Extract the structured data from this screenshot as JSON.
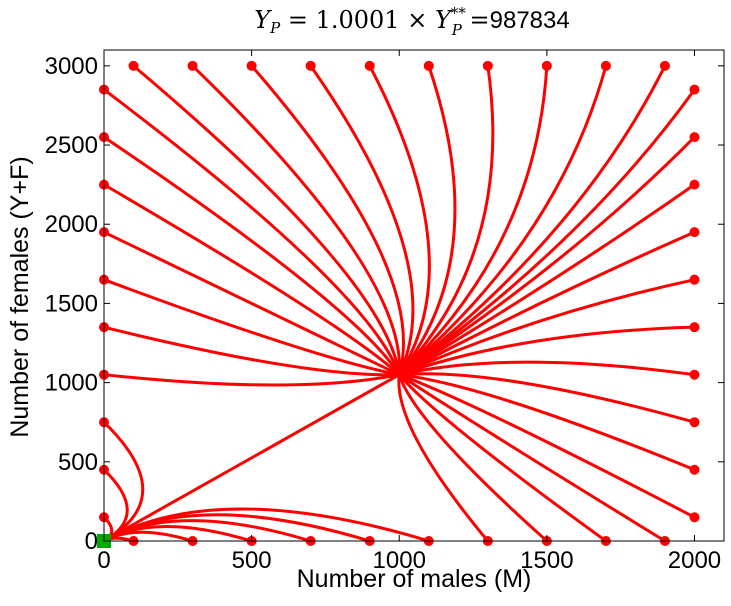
{
  "chart_data": {
    "type": "line",
    "title_parts": {
      "y": "Y",
      "sub_p": "P",
      "eq1": " = 1.0001 × ",
      "sup": "**",
      "eq2": " =",
      "value": "987834"
    },
    "xlabel": "Number of males (M)",
    "ylabel": "Number of females (Y+F)",
    "xlim": [
      0,
      2100
    ],
    "ylim": [
      0,
      3100
    ],
    "xticks": [
      0,
      500,
      1000,
      1500,
      2000
    ],
    "yticks": [
      0,
      500,
      1000,
      1500,
      2000,
      2500,
      3000
    ],
    "grid": false,
    "line_color": "#ff0000",
    "marker_color": "#ff0000",
    "equilibrium_color": "#00aa00",
    "equilibrium_point": [
      0,
      0
    ],
    "attractor_end": [
      1000,
      1050
    ],
    "series": [
      {
        "start": [
          100,
          3000
        ],
        "end": [
          1000,
          1050
        ]
      },
      {
        "start": [
          300,
          3000
        ],
        "end": [
          1000,
          1050
        ]
      },
      {
        "start": [
          500,
          3000
        ],
        "end": [
          1000,
          1050
        ]
      },
      {
        "start": [
          700,
          3000
        ],
        "end": [
          1000,
          1050
        ]
      },
      {
        "start": [
          900,
          3000
        ],
        "end": [
          1000,
          1050
        ]
      },
      {
        "start": [
          1100,
          3000
        ],
        "end": [
          1000,
          1050
        ]
      },
      {
        "start": [
          1300,
          3000
        ],
        "end": [
          1000,
          1050
        ]
      },
      {
        "start": [
          1500,
          3000
        ],
        "end": [
          1000,
          1050
        ]
      },
      {
        "start": [
          1700,
          3000
        ],
        "end": [
          1000,
          1050
        ]
      },
      {
        "start": [
          1900,
          3000
        ],
        "end": [
          1000,
          1050
        ]
      },
      {
        "start": [
          2000,
          2850
        ],
        "end": [
          1000,
          1050
        ]
      },
      {
        "start": [
          2000,
          2550
        ],
        "end": [
          1000,
          1050
        ]
      },
      {
        "start": [
          2000,
          2250
        ],
        "end": [
          1000,
          1050
        ]
      },
      {
        "start": [
          2000,
          1950
        ],
        "end": [
          1000,
          1050
        ]
      },
      {
        "start": [
          2000,
          1650
        ],
        "end": [
          1000,
          1050
        ]
      },
      {
        "start": [
          2000,
          1350
        ],
        "end": [
          1000,
          1050
        ]
      },
      {
        "start": [
          2000,
          1050
        ],
        "end": [
          1000,
          1050
        ]
      },
      {
        "start": [
          2000,
          750
        ],
        "end": [
          1000,
          1050
        ]
      },
      {
        "start": [
          2000,
          450
        ],
        "end": [
          1000,
          1050
        ]
      },
      {
        "start": [
          2000,
          150
        ],
        "end": [
          1000,
          1050
        ]
      },
      {
        "start": [
          1900,
          0
        ],
        "end": [
          1000,
          1050
        ]
      },
      {
        "start": [
          1700,
          0
        ],
        "end": [
          1000,
          1050
        ]
      },
      {
        "start": [
          1500,
          0
        ],
        "end": [
          1000,
          1050
        ]
      },
      {
        "start": [
          1300,
          0
        ],
        "end": [
          1000,
          1050
        ]
      },
      {
        "start": [
          1100,
          0
        ],
        "end": [
          0,
          0
        ]
      },
      {
        "start": [
          900,
          0
        ],
        "end": [
          0,
          0
        ]
      },
      {
        "start": [
          700,
          0
        ],
        "end": [
          0,
          0
        ]
      },
      {
        "start": [
          500,
          0
        ],
        "end": [
          0,
          0
        ]
      },
      {
        "start": [
          300,
          0
        ],
        "end": [
          0,
          0
        ]
      },
      {
        "start": [
          100,
          0
        ],
        "end": [
          0,
          0
        ]
      },
      {
        "start": [
          0,
          150
        ],
        "end": [
          0,
          0
        ]
      },
      {
        "start": [
          0,
          450
        ],
        "end": [
          0,
          0
        ]
      },
      {
        "start": [
          0,
          750
        ],
        "end": [
          0,
          0
        ]
      },
      {
        "start": [
          0,
          1050
        ],
        "end": [
          1000,
          1050
        ]
      },
      {
        "start": [
          0,
          1350
        ],
        "end": [
          1000,
          1050
        ]
      },
      {
        "start": [
          0,
          1650
        ],
        "end": [
          1000,
          1050
        ]
      },
      {
        "start": [
          0,
          1950
        ],
        "end": [
          1000,
          1050
        ]
      },
      {
        "start": [
          0,
          2250
        ],
        "end": [
          1000,
          1050
        ]
      },
      {
        "start": [
          0,
          2550
        ],
        "end": [
          1000,
          1050
        ]
      },
      {
        "start": [
          0,
          2850
        ],
        "end": [
          1000,
          1050
        ]
      }
    ]
  }
}
